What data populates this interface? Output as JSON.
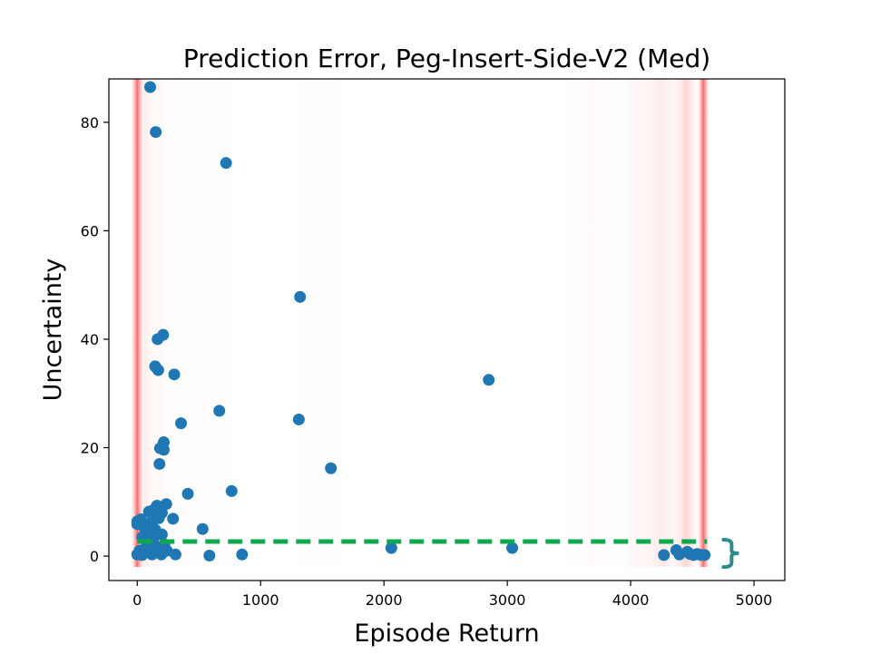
{
  "chart_data": {
    "type": "scatter",
    "title": "Prediction Error, Peg-Insert-Side-V2 (Med)",
    "xlabel": "Episode Return",
    "ylabel": "Uncertainty",
    "xlim": [
      -230,
      5250
    ],
    "ylim": [
      -4.5,
      88
    ],
    "xticks": [
      0,
      1000,
      2000,
      3000,
      4000,
      5000
    ],
    "yticks": [
      0,
      20,
      40,
      60,
      80
    ],
    "xtick_labels": [
      "0",
      "1000",
      "2000",
      "3000",
      "4000",
      "5000"
    ],
    "ytick_labels": [
      "0",
      "20",
      "40",
      "60",
      "80"
    ],
    "grid": false,
    "point_color": "#1f77b4",
    "highlight_color": "#ff6b6b",
    "threshold_color": "#10a84f",
    "brace_color": "#2a8c8c",
    "density_bands": [
      {
        "x": 0,
        "half_width": 45,
        "intensity": 1.0
      },
      {
        "x": 60,
        "half_width": 60,
        "intensity": 0.12
      },
      {
        "x": 160,
        "half_width": 140,
        "intensity": 0.05
      },
      {
        "x": 500,
        "half_width": 300,
        "intensity": 0.02
      },
      {
        "x": 1500,
        "half_width": 250,
        "intensity": 0.015
      },
      {
        "x": 3700,
        "half_width": 250,
        "intensity": 0.03
      },
      {
        "x": 4050,
        "half_width": 160,
        "intensity": 0.07
      },
      {
        "x": 4250,
        "half_width": 180,
        "intensity": 0.14
      },
      {
        "x": 4450,
        "half_width": 100,
        "intensity": 0.28
      },
      {
        "x": 4590,
        "half_width": 45,
        "intensity": 1.0
      }
    ],
    "band_y_range": [
      -2,
      88
    ],
    "threshold_line": {
      "y": 2.7,
      "x_start": 0,
      "x_end": 4620
    },
    "points": [
      {
        "x": 105,
        "y": 86.5
      },
      {
        "x": 150,
        "y": 78.2
      },
      {
        "x": 720,
        "y": 72.5
      },
      {
        "x": 1320,
        "y": 47.8
      },
      {
        "x": 210,
        "y": 40.8
      },
      {
        "x": 165,
        "y": 40.0
      },
      {
        "x": 145,
        "y": 35.0
      },
      {
        "x": 170,
        "y": 34.3
      },
      {
        "x": 300,
        "y": 33.5
      },
      {
        "x": 2850,
        "y": 32.5
      },
      {
        "x": 665,
        "y": 26.8
      },
      {
        "x": 1310,
        "y": 25.2
      },
      {
        "x": 355,
        "y": 24.5
      },
      {
        "x": 215,
        "y": 21.0
      },
      {
        "x": 215,
        "y": 19.6
      },
      {
        "x": 185,
        "y": 19.9
      },
      {
        "x": 180,
        "y": 17.0
      },
      {
        "x": 1570,
        "y": 16.2
      },
      {
        "x": 765,
        "y": 12.0
      },
      {
        "x": 410,
        "y": 11.5
      },
      {
        "x": 235,
        "y": 9.6
      },
      {
        "x": 160,
        "y": 9.3
      },
      {
        "x": 130,
        "y": 8.5
      },
      {
        "x": 95,
        "y": 8.2
      },
      {
        "x": 200,
        "y": 8.0
      },
      {
        "x": 30,
        "y": 6.8
      },
      {
        "x": 0,
        "y": 6.4
      },
      {
        "x": 35,
        "y": 6.0
      },
      {
        "x": 0,
        "y": 5.9
      },
      {
        "x": 290,
        "y": 6.9
      },
      {
        "x": 175,
        "y": 7.0
      },
      {
        "x": 120,
        "y": 6.5
      },
      {
        "x": 530,
        "y": 5.0
      },
      {
        "x": 60,
        "y": 5.2
      },
      {
        "x": 145,
        "y": 4.9
      },
      {
        "x": 90,
        "y": 4.4
      },
      {
        "x": 200,
        "y": 4.0
      },
      {
        "x": 40,
        "y": 3.5
      },
      {
        "x": 130,
        "y": 3.0
      },
      {
        "x": 220,
        "y": 2.2
      },
      {
        "x": 75,
        "y": 1.8
      },
      {
        "x": 160,
        "y": 1.5
      },
      {
        "x": 20,
        "y": 1.0
      },
      {
        "x": 95,
        "y": 0.8
      },
      {
        "x": 240,
        "y": 1.0
      },
      {
        "x": 0,
        "y": 0.3
      },
      {
        "x": 40,
        "y": 0.2
      },
      {
        "x": 120,
        "y": 0.3
      },
      {
        "x": 195,
        "y": 0.3
      },
      {
        "x": 310,
        "y": 0.3
      },
      {
        "x": 585,
        "y": 0.1
      },
      {
        "x": 850,
        "y": 0.3
      },
      {
        "x": 2060,
        "y": 1.5
      },
      {
        "x": 3040,
        "y": 1.5
      },
      {
        "x": 4270,
        "y": 0.2
      },
      {
        "x": 4370,
        "y": 1.1
      },
      {
        "x": 4395,
        "y": 0.3
      },
      {
        "x": 4460,
        "y": 0.8
      },
      {
        "x": 4480,
        "y": 0.4
      },
      {
        "x": 4510,
        "y": 0.2
      },
      {
        "x": 4540,
        "y": 0.4
      },
      {
        "x": 4570,
        "y": 0.2
      },
      {
        "x": 4600,
        "y": 0.2
      }
    ]
  }
}
